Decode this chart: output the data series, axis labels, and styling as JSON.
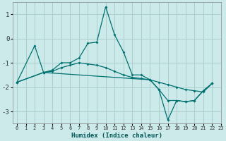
{
  "xlabel": "Humidex (Indice chaleur)",
  "ylabel": "",
  "bg_color": "#cceaea",
  "grid_color": "#aacfcf",
  "line_color": "#007070",
  "xlim": [
    -0.5,
    23
  ],
  "ylim": [
    -3.5,
    1.5
  ],
  "xticks": [
    0,
    1,
    2,
    3,
    4,
    5,
    6,
    7,
    8,
    9,
    10,
    11,
    12,
    13,
    14,
    15,
    16,
    17,
    18,
    19,
    20,
    21,
    22,
    23
  ],
  "yticks": [
    -3,
    -2,
    -1,
    0,
    1
  ],
  "lines": [
    {
      "x": [
        0,
        2,
        3,
        4,
        5,
        6,
        7,
        8,
        9,
        10,
        11,
        12,
        13,
        14,
        15,
        16,
        17,
        18,
        19,
        20,
        21,
        22
      ],
      "y": [
        -1.8,
        -0.3,
        -1.4,
        -1.3,
        -1.0,
        -1.0,
        -0.8,
        -0.2,
        -0.15,
        1.3,
        0.15,
        -0.55,
        -1.5,
        -1.5,
        -1.7,
        -2.1,
        -3.35,
        -2.55,
        -2.6,
        -2.55,
        -2.15,
        -1.85
      ]
    },
    {
      "x": [
        0,
        3,
        4,
        5,
        6,
        7,
        8,
        9,
        10,
        11,
        12,
        13,
        14,
        15,
        16,
        17,
        18,
        19,
        20,
        21,
        22
      ],
      "y": [
        -1.8,
        -1.4,
        -1.35,
        -1.2,
        -1.1,
        -1.0,
        -1.05,
        -1.1,
        -1.2,
        -1.35,
        -1.5,
        -1.6,
        -1.65,
        -1.7,
        -1.8,
        -1.9,
        -2.0,
        -2.1,
        -2.15,
        -2.2,
        -1.85
      ]
    },
    {
      "x": [
        0,
        3,
        15,
        16,
        17,
        18,
        19,
        20,
        21,
        22
      ],
      "y": [
        -1.8,
        -1.4,
        -1.7,
        -2.1,
        -2.55,
        -2.55,
        -2.6,
        -2.55,
        -2.15,
        -1.85
      ]
    }
  ]
}
